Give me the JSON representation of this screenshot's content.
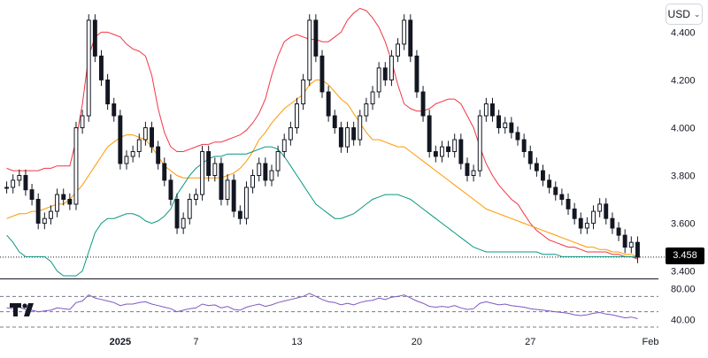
{
  "currency": {
    "label": "USD",
    "chevron": "chevron-down-icon"
  },
  "price_tag": "3.458",
  "chart_data": [
    {
      "type": "candlestick",
      "x_ticks": [
        "2025",
        "7",
        "13",
        "20",
        "27",
        "Feb"
      ],
      "y_ticks": [
        "4.400",
        "4.200",
        "4.000",
        "3.800",
        "3.600",
        "3.400"
      ],
      "ylim": [
        3.38,
        4.52
      ],
      "last_price": 3.458,
      "colors": {
        "candle": "#131722",
        "upper_band": "#f23645",
        "middle_band": "#ff9800",
        "lower_band": "#089981",
        "last_line": "#131722"
      },
      "close": [
        3.75,
        3.78,
        3.8,
        3.74,
        3.7,
        3.6,
        3.62,
        3.65,
        3.72,
        3.7,
        3.68,
        4.0,
        4.05,
        4.45,
        4.3,
        4.2,
        4.1,
        4.05,
        3.85,
        3.88,
        3.9,
        3.95,
        4.0,
        3.92,
        3.85,
        3.78,
        3.7,
        3.58,
        3.62,
        3.7,
        3.72,
        3.9,
        3.8,
        3.85,
        3.7,
        3.78,
        3.65,
        3.62,
        3.75,
        3.8,
        3.85,
        3.78,
        3.82,
        3.9,
        3.95,
        4.0,
        4.1,
        4.2,
        4.45,
        4.3,
        4.15,
        4.05,
        4.0,
        3.92,
        4.0,
        3.95,
        4.05,
        4.1,
        4.15,
        4.25,
        4.2,
        4.3,
        4.35,
        4.45,
        4.3,
        4.15,
        4.05,
        3.9,
        3.88,
        3.92,
        3.9,
        3.95,
        3.85,
        3.8,
        3.82,
        4.05,
        4.1,
        4.05,
        4.0,
        4.02,
        3.98,
        3.95,
        3.9,
        3.85,
        3.82,
        3.78,
        3.75,
        3.72,
        3.7,
        3.66,
        3.62,
        3.58,
        3.6,
        3.65,
        3.68,
        3.62,
        3.58,
        3.55,
        3.5,
        3.52,
        3.458
      ],
      "upper_band": [
        3.83,
        3.82,
        3.82,
        3.82,
        3.82,
        3.82,
        3.83,
        3.83,
        3.84,
        3.84,
        3.84,
        3.95,
        4.1,
        4.3,
        4.38,
        4.4,
        4.4,
        4.39,
        4.38,
        4.35,
        4.33,
        4.32,
        4.3,
        4.22,
        4.08,
        3.98,
        3.92,
        3.9,
        3.9,
        3.91,
        3.92,
        3.93,
        3.93,
        3.94,
        3.94,
        3.95,
        3.96,
        3.97,
        3.99,
        4.02,
        4.06,
        4.12,
        4.22,
        4.3,
        4.36,
        4.38,
        4.39,
        4.38,
        4.37,
        4.37,
        4.36,
        4.36,
        4.38,
        4.4,
        4.45,
        4.48,
        4.5,
        4.49,
        4.46,
        4.42,
        4.36,
        4.28,
        4.18,
        4.1,
        4.08,
        4.07,
        4.07,
        4.08,
        4.1,
        4.11,
        4.12,
        4.12,
        4.1,
        4.05,
        4.0,
        3.92,
        3.85,
        3.8,
        3.76,
        3.73,
        3.7,
        3.68,
        3.64,
        3.6,
        3.57,
        3.55,
        3.53,
        3.52,
        3.51,
        3.5,
        3.5,
        3.49,
        3.48,
        3.48,
        3.48,
        3.48,
        3.47,
        3.47,
        3.46,
        3.46,
        3.45
      ],
      "middle_band": [
        3.62,
        3.63,
        3.64,
        3.64,
        3.65,
        3.65,
        3.66,
        3.67,
        3.68,
        3.68,
        3.7,
        3.73,
        3.76,
        3.8,
        3.84,
        3.88,
        3.92,
        3.94,
        3.96,
        3.97,
        3.97,
        3.96,
        3.95,
        3.92,
        3.88,
        3.84,
        3.82,
        3.8,
        3.79,
        3.79,
        3.79,
        3.79,
        3.79,
        3.79,
        3.79,
        3.8,
        3.81,
        3.83,
        3.86,
        3.9,
        3.95,
        3.98,
        4.02,
        4.05,
        4.08,
        4.1,
        4.12,
        4.14,
        4.18,
        4.2,
        4.2,
        4.18,
        4.15,
        4.12,
        4.1,
        4.06,
        4.02,
        3.98,
        3.95,
        3.95,
        3.94,
        3.93,
        3.92,
        3.92,
        3.9,
        3.88,
        3.86,
        3.84,
        3.82,
        3.8,
        3.78,
        3.76,
        3.74,
        3.72,
        3.7,
        3.68,
        3.66,
        3.65,
        3.64,
        3.63,
        3.62,
        3.61,
        3.6,
        3.59,
        3.58,
        3.57,
        3.56,
        3.55,
        3.54,
        3.53,
        3.52,
        3.51,
        3.5,
        3.5,
        3.49,
        3.49,
        3.48,
        3.48,
        3.47,
        3.47,
        3.46
      ],
      "lower_band": [
        3.55,
        3.52,
        3.48,
        3.46,
        3.46,
        3.46,
        3.46,
        3.44,
        3.4,
        3.38,
        3.38,
        3.38,
        3.4,
        3.48,
        3.56,
        3.6,
        3.62,
        3.62,
        3.63,
        3.64,
        3.64,
        3.63,
        3.61,
        3.6,
        3.61,
        3.63,
        3.66,
        3.72,
        3.76,
        3.8,
        3.83,
        3.85,
        3.87,
        3.88,
        3.88,
        3.89,
        3.89,
        3.89,
        3.89,
        3.9,
        3.91,
        3.92,
        3.92,
        3.91,
        3.88,
        3.84,
        3.8,
        3.76,
        3.72,
        3.68,
        3.66,
        3.64,
        3.62,
        3.62,
        3.63,
        3.64,
        3.66,
        3.68,
        3.7,
        3.71,
        3.72,
        3.72,
        3.72,
        3.71,
        3.7,
        3.68,
        3.66,
        3.64,
        3.62,
        3.6,
        3.58,
        3.56,
        3.54,
        3.52,
        3.5,
        3.49,
        3.48,
        3.48,
        3.48,
        3.48,
        3.48,
        3.48,
        3.48,
        3.48,
        3.48,
        3.47,
        3.47,
        3.47,
        3.46,
        3.46,
        3.46,
        3.46,
        3.46,
        3.46,
        3.46,
        3.46,
        3.46,
        3.46,
        3.46,
        3.46,
        3.46
      ]
    },
    {
      "type": "line",
      "y_ticks": [
        "80.00",
        "40.00"
      ],
      "ylim": [
        30,
        90
      ],
      "reference_lines": [
        70,
        50,
        30
      ],
      "colors": {
        "line": "#7e57c2",
        "reference": "#787b86"
      },
      "values": [
        55,
        54,
        56,
        53,
        52,
        50,
        51,
        52,
        55,
        54,
        53,
        62,
        64,
        72,
        68,
        66,
        64,
        62,
        58,
        60,
        60,
        62,
        63,
        60,
        58,
        56,
        54,
        50,
        52,
        54,
        55,
        60,
        58,
        59,
        55,
        57,
        53,
        52,
        56,
        58,
        60,
        57,
        59,
        62,
        64,
        66,
        68,
        70,
        74,
        70,
        66,
        63,
        62,
        59,
        61,
        59,
        62,
        64,
        65,
        68,
        66,
        69,
        70,
        72,
        68,
        64,
        61,
        57,
        56,
        57,
        56,
        58,
        55,
        53,
        54,
        61,
        63,
        61,
        59,
        60,
        58,
        57,
        56,
        54,
        53,
        52,
        51,
        50,
        49,
        48,
        46,
        45,
        46,
        48,
        49,
        47,
        46,
        44,
        42,
        43,
        41
      ]
    }
  ]
}
